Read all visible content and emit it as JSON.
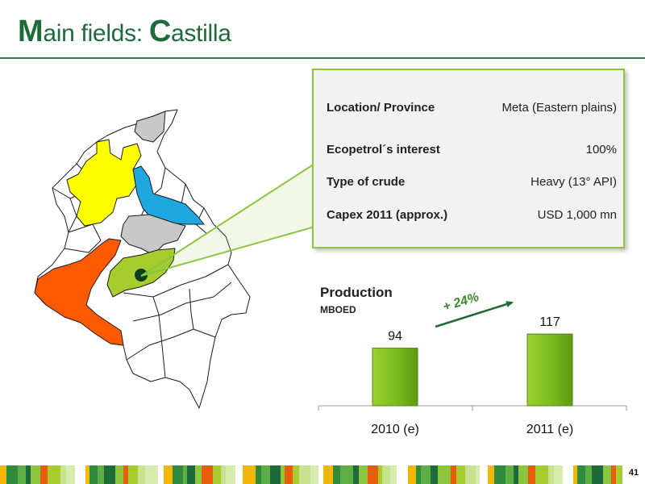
{
  "slide": {
    "title_first_letter": "M",
    "title_part1": "ain fields: ",
    "title_second_letter": "C",
    "title_part2": "astilla",
    "page_number": "41"
  },
  "info": {
    "rows": [
      {
        "label": "Location/ Province",
        "value": "Meta (Eastern plains)"
      },
      {
        "label": "Ecopetrol´s interest",
        "value": "100%"
      },
      {
        "label": "Type of crude",
        "value": "Heavy (13° API)"
      },
      {
        "label": "Capex 2011 (approx.)",
        "value": "USD 1,000 mn"
      }
    ]
  },
  "production": {
    "title": "Production",
    "unit": "MBOED",
    "growth_label": "+ 24%"
  },
  "chart_data": {
    "type": "bar",
    "title": "Production",
    "ylabel": "MBOED",
    "categories": [
      "2010 (e)",
      "2011 (e)"
    ],
    "values": [
      94,
      117
    ],
    "data_labels": [
      "94",
      "117"
    ],
    "annotation": "+ 24%",
    "bar_color": "#7cbd1d",
    "annotation_color": "#1c6b38",
    "grid": false,
    "legend": "none"
  },
  "colors": {
    "brand_green": "#1c6b38",
    "accent_lime": "#8cc63f",
    "highlight_castilla": "#a6cc2e",
    "region_yellow": "#ffff00",
    "region_blue": "#1fa7e0",
    "region_orange": "#ff5a00",
    "region_gray": "#c8c8c8"
  }
}
